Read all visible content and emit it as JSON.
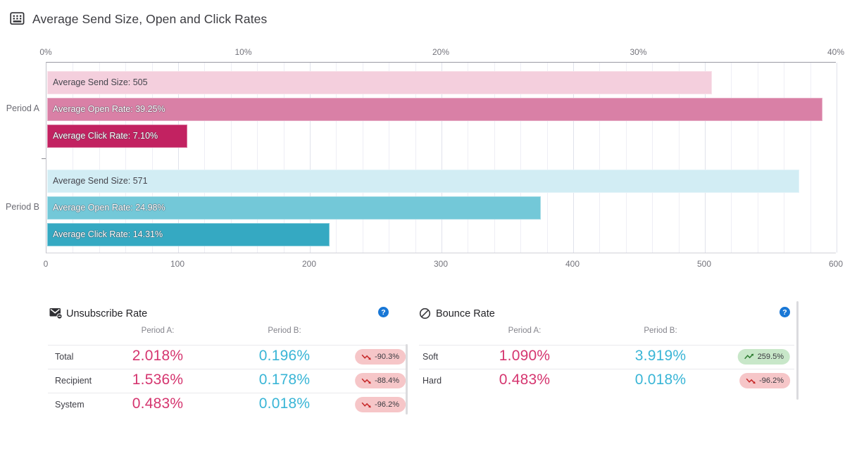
{
  "header": {
    "title": "Average Send Size, Open and Click Rates",
    "icon": "table-chart-icon"
  },
  "chart_data": {
    "type": "bar",
    "orientation": "horizontal",
    "title": "Average Send Size, Open and Click Rates",
    "grid": true,
    "top_axis": {
      "unit": "%",
      "range": [
        0,
        40
      ],
      "ticks": [
        "0%",
        "10%",
        "20%",
        "30%",
        "40%"
      ]
    },
    "bottom_axis": {
      "unit": "count",
      "range": [
        0,
        600
      ],
      "ticks": [
        "0",
        "100",
        "200",
        "300",
        "400",
        "500",
        "600"
      ]
    },
    "groups": [
      {
        "label": "Period A",
        "bars": [
          {
            "label": "Average Send Size: 505",
            "value": 505,
            "axis": "count",
            "color": "#f4cfdd",
            "text": "dark"
          },
          {
            "label": "Average Open Rate: 39.25%",
            "value": 39.25,
            "axis": "percent",
            "color": "#d980a6",
            "text": "light"
          },
          {
            "label": "Average Click Rate: 7.10%",
            "value": 7.1,
            "axis": "percent",
            "color": "#c22261",
            "text": "light"
          }
        ]
      },
      {
        "label": "Period B",
        "bars": [
          {
            "label": "Average Send Size: 571",
            "value": 571,
            "axis": "count",
            "color": "#d2edf4",
            "text": "dark"
          },
          {
            "label": "Average Open Rate: 24.98%",
            "value": 24.98,
            "axis": "percent",
            "color": "#73c8d8",
            "text": "light"
          },
          {
            "label": "Average Click Rate: 14.31%",
            "value": 14.31,
            "axis": "percent",
            "color": "#35a9c2",
            "text": "light"
          }
        ]
      }
    ]
  },
  "tables": [
    {
      "title": "Unsubscribe Rate",
      "icon": "unsubscribe-envelope-icon",
      "help_icon": "help-icon",
      "columns": [
        "Period A:",
        "Period B:"
      ],
      "rows": [
        {
          "label": "Total",
          "period_a": "2.018%",
          "period_b": "0.196%",
          "change": "-90.3%",
          "trend": "down"
        },
        {
          "label": "Recipient",
          "period_a": "1.536%",
          "period_b": "0.178%",
          "change": "-88.4%",
          "trend": "down"
        },
        {
          "label": "System",
          "period_a": "0.483%",
          "period_b": "0.018%",
          "change": "-96.2%",
          "trend": "down"
        }
      ]
    },
    {
      "title": "Bounce Rate",
      "icon": "block-icon",
      "help_icon": "help-icon",
      "columns": [
        "Period A:",
        "Period B:"
      ],
      "rows": [
        {
          "label": "Soft",
          "period_a": "1.090%",
          "period_b": "3.919%",
          "change": "259.5%",
          "trend": "up"
        },
        {
          "label": "Hard",
          "period_a": "0.483%",
          "period_b": "0.018%",
          "change": "-96.2%",
          "trend": "down"
        }
      ]
    }
  ],
  "colors": {
    "period_a_value": "#d5356f",
    "period_b_value": "#39b5d6",
    "badge_down_bg": "#f6c6c8",
    "badge_up_bg": "#c8e7c9",
    "trend_down": "#c62828",
    "trend_up": "#2e7d32",
    "help_bg": "#1877d6"
  }
}
